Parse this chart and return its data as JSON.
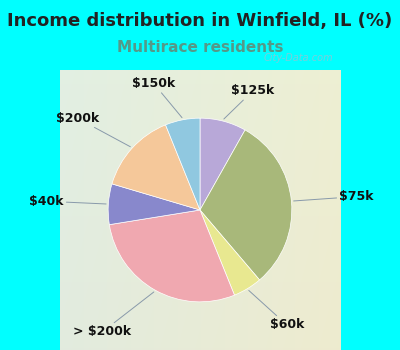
{
  "title": "Income distribution in Winfield, IL (%)",
  "subtitle": "Multirace residents",
  "watermark": "City-Data.com",
  "background_color": "#00FFFF",
  "slices": [
    {
      "label": "$125k",
      "value": 8,
      "color": "#b8a8d8",
      "startangle_order": 0
    },
    {
      "label": "$75k",
      "value": 30,
      "color": "#a8b87a",
      "startangle_order": 1
    },
    {
      "label": "$60k",
      "value": 5,
      "color": "#e8e890",
      "startangle_order": 2
    },
    {
      "label": "> $200k",
      "value": 28,
      "color": "#f0a8b0",
      "startangle_order": 3
    },
    {
      "label": "$40k",
      "value": 7,
      "color": "#8888cc",
      "startangle_order": 4
    },
    {
      "label": "$200k",
      "value": 14,
      "color": "#f5c89a",
      "startangle_order": 5
    },
    {
      "label": "$150k",
      "value": 6,
      "color": "#90c8e0",
      "startangle_order": 6
    }
  ],
  "title_fontsize": 13,
  "subtitle_fontsize": 11,
  "label_fontsize": 9,
  "chart_bg_color_tl": "#d8f0e8",
  "chart_bg_color_br": "#d0e8d0"
}
